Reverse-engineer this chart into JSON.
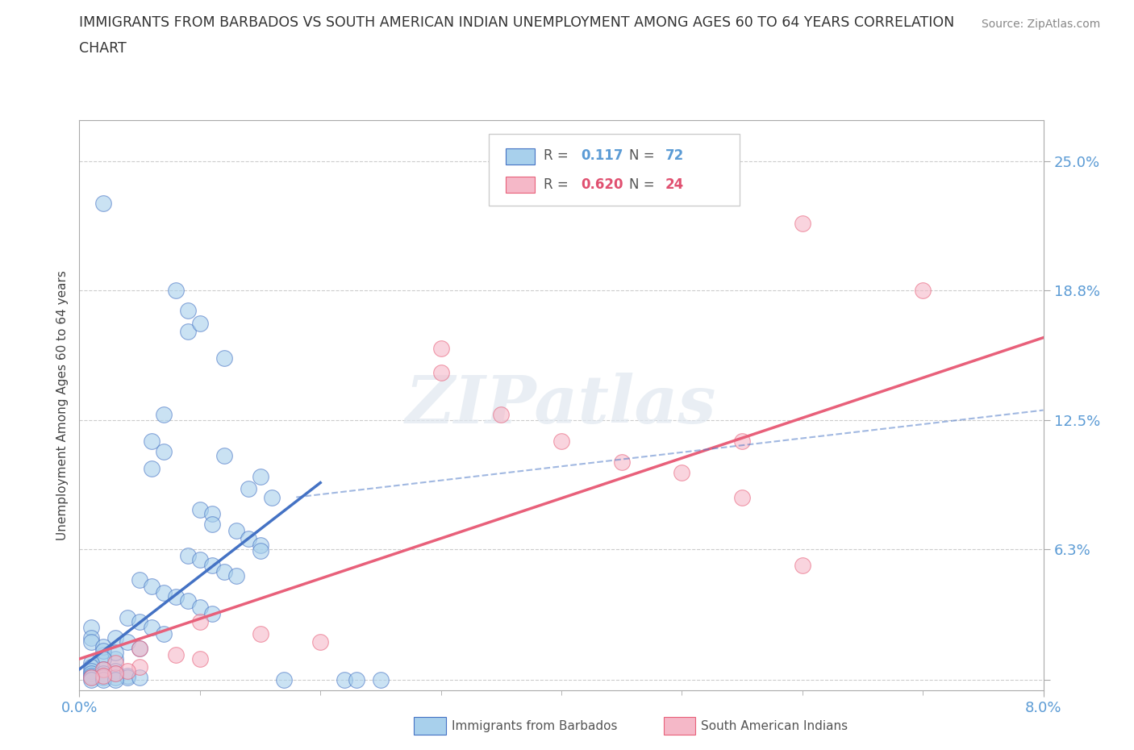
{
  "title_line1": "IMMIGRANTS FROM BARBADOS VS SOUTH AMERICAN INDIAN UNEMPLOYMENT AMONG AGES 60 TO 64 YEARS CORRELATION",
  "title_line2": "CHART",
  "source": "Source: ZipAtlas.com",
  "ylabel": "Unemployment Among Ages 60 to 64 years",
  "xlim": [
    0.0,
    0.08
  ],
  "ylim": [
    -0.005,
    0.27
  ],
  "yticks": [
    0.0,
    0.063,
    0.125,
    0.188,
    0.25
  ],
  "ytick_labels": [
    "",
    "6.3%",
    "12.5%",
    "18.8%",
    "25.0%"
  ],
  "xtick_labels": [
    "0.0%",
    "8.0%"
  ],
  "R_barbados": 0.117,
  "N_barbados": 72,
  "R_indian": 0.62,
  "N_indian": 24,
  "color_barbados": "#a8d0ec",
  "color_indian": "#f5b8c8",
  "color_barbados_line": "#4472c4",
  "color_indian_line": "#e8607a",
  "background_color": "#ffffff",
  "barbados_scatter": [
    [
      0.002,
      0.23
    ],
    [
      0.008,
      0.188
    ],
    [
      0.009,
      0.178
    ],
    [
      0.009,
      0.168
    ],
    [
      0.01,
      0.172
    ],
    [
      0.012,
      0.155
    ],
    [
      0.007,
      0.128
    ],
    [
      0.006,
      0.115
    ],
    [
      0.007,
      0.11
    ],
    [
      0.012,
      0.108
    ],
    [
      0.006,
      0.102
    ],
    [
      0.015,
      0.098
    ],
    [
      0.014,
      0.092
    ],
    [
      0.016,
      0.088
    ],
    [
      0.01,
      0.082
    ],
    [
      0.011,
      0.08
    ],
    [
      0.011,
      0.075
    ],
    [
      0.013,
      0.072
    ],
    [
      0.014,
      0.068
    ],
    [
      0.015,
      0.065
    ],
    [
      0.015,
      0.062
    ],
    [
      0.009,
      0.06
    ],
    [
      0.01,
      0.058
    ],
    [
      0.011,
      0.055
    ],
    [
      0.012,
      0.052
    ],
    [
      0.013,
      0.05
    ],
    [
      0.005,
      0.048
    ],
    [
      0.006,
      0.045
    ],
    [
      0.007,
      0.042
    ],
    [
      0.008,
      0.04
    ],
    [
      0.009,
      0.038
    ],
    [
      0.01,
      0.035
    ],
    [
      0.011,
      0.032
    ],
    [
      0.004,
      0.03
    ],
    [
      0.005,
      0.028
    ],
    [
      0.006,
      0.025
    ],
    [
      0.007,
      0.022
    ],
    [
      0.003,
      0.02
    ],
    [
      0.004,
      0.018
    ],
    [
      0.005,
      0.015
    ],
    [
      0.002,
      0.012
    ],
    [
      0.003,
      0.01
    ],
    [
      0.001,
      0.025
    ],
    [
      0.001,
      0.02
    ],
    [
      0.001,
      0.018
    ],
    [
      0.002,
      0.016
    ],
    [
      0.002,
      0.014
    ],
    [
      0.003,
      0.013
    ],
    [
      0.002,
      0.01
    ],
    [
      0.001,
      0.008
    ],
    [
      0.001,
      0.006
    ],
    [
      0.002,
      0.005
    ],
    [
      0.001,
      0.004
    ],
    [
      0.003,
      0.004
    ],
    [
      0.002,
      0.003
    ],
    [
      0.001,
      0.003
    ],
    [
      0.003,
      0.003
    ],
    [
      0.001,
      0.002
    ],
    [
      0.002,
      0.002
    ],
    [
      0.004,
      0.002
    ],
    [
      0.001,
      0.001
    ],
    [
      0.002,
      0.001
    ],
    [
      0.003,
      0.001
    ],
    [
      0.004,
      0.001
    ],
    [
      0.005,
      0.001
    ],
    [
      0.001,
      0.0
    ],
    [
      0.002,
      0.0
    ],
    [
      0.003,
      0.0
    ],
    [
      0.017,
      0.0
    ],
    [
      0.022,
      0.0
    ],
    [
      0.023,
      0.0
    ],
    [
      0.025,
      0.0
    ]
  ],
  "indian_scatter": [
    [
      0.06,
      0.22
    ],
    [
      0.07,
      0.188
    ],
    [
      0.03,
      0.16
    ],
    [
      0.03,
      0.148
    ],
    [
      0.035,
      0.128
    ],
    [
      0.04,
      0.115
    ],
    [
      0.055,
      0.115
    ],
    [
      0.045,
      0.105
    ],
    [
      0.05,
      0.1
    ],
    [
      0.055,
      0.088
    ],
    [
      0.06,
      0.055
    ],
    [
      0.01,
      0.028
    ],
    [
      0.015,
      0.022
    ],
    [
      0.02,
      0.018
    ],
    [
      0.005,
      0.015
    ],
    [
      0.008,
      0.012
    ],
    [
      0.01,
      0.01
    ],
    [
      0.003,
      0.008
    ],
    [
      0.005,
      0.006
    ],
    [
      0.002,
      0.005
    ],
    [
      0.004,
      0.004
    ],
    [
      0.003,
      0.003
    ],
    [
      0.002,
      0.002
    ],
    [
      0.001,
      0.001
    ]
  ],
  "barbados_line": [
    [
      0.0,
      0.005
    ],
    [
      0.02,
      0.095
    ]
  ],
  "indian_line": [
    [
      0.0,
      0.01
    ],
    [
      0.08,
      0.165
    ]
  ]
}
